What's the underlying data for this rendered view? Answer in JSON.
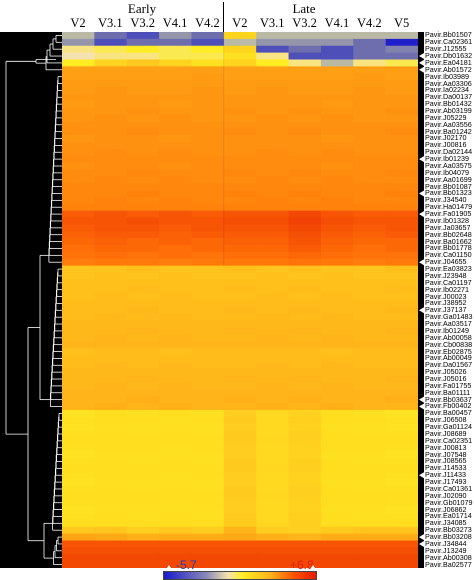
{
  "groups": {
    "early": "Early",
    "late": "Late"
  },
  "columns": [
    "V2",
    "V3.1",
    "V3.2",
    "V4.1",
    "V4.2",
    "V2",
    "V3.1",
    "V3.2",
    "V4.1",
    "V4.2",
    "V5"
  ],
  "legend": {
    "min": "-5.7",
    "max": "+6.8"
  },
  "rows": [
    {
      "id": "Pavir.Bb01507",
      "v": [
        -1,
        -3,
        -4,
        -2,
        -3,
        3,
        -1,
        -1,
        -1,
        -1,
        -1
      ],
      "m": false
    },
    {
      "id": "Pavir.Ca02361",
      "v": [
        -2,
        -4,
        -3,
        -3,
        -4,
        -1,
        -2,
        -2,
        -2,
        -3,
        -5.5
      ],
      "m": false
    },
    {
      "id": "Pavir.J12555",
      "v": [
        1,
        1.5,
        2,
        1.5,
        2,
        3,
        -4,
        -3,
        -4,
        -3,
        -2.5
      ],
      "m": false
    },
    {
      "id": "Pavir.Db01632",
      "v": [
        0.5,
        1,
        1,
        1.5,
        1.5,
        2.5,
        1,
        -4,
        -4,
        -3,
        -3
      ],
      "m": true
    },
    {
      "id": "Pavir.Ea04181",
      "v": [
        2,
        3,
        3.5,
        3,
        2.5,
        3,
        2,
        1,
        -1,
        1,
        1.5
      ],
      "m": true
    },
    {
      "id": "Pavir.Ab01572",
      "v": [
        4.5,
        4.5,
        4.5,
        4.5,
        4.5,
        4.5,
        4.5,
        4.5,
        4.5,
        4.5,
        4.5
      ],
      "m": true
    },
    {
      "id": "Pavir.Ib03989",
      "v": [
        4.5,
        4.5,
        4.5,
        4.5,
        4.6,
        4.5,
        4.5,
        4.5,
        4.5,
        4.6,
        4.5
      ],
      "m": false
    },
    {
      "id": "Pavir.Aa03306",
      "v": [
        4.6,
        4.6,
        4.6,
        4.6,
        4.6,
        4.6,
        4.6,
        4.6,
        4.6,
        4.6,
        4.6
      ],
      "m": false
    },
    {
      "id": "Pavir.Ia02234",
      "v": [
        4.6,
        4.7,
        4.6,
        4.6,
        4.7,
        4.6,
        4.7,
        4.6,
        4.6,
        4.7,
        4.6
      ],
      "m": false
    },
    {
      "id": "Pavir.Da00137",
      "v": [
        4.7,
        4.7,
        4.7,
        4.7,
        4.7,
        4.7,
        4.7,
        4.7,
        4.7,
        4.7,
        4.7
      ],
      "m": false
    },
    {
      "id": "Pavir.Bb01432",
      "v": [
        4.6,
        4.7,
        4.7,
        4.6,
        4.7,
        4.7,
        4.7,
        4.7,
        4.6,
        4.7,
        4.7
      ],
      "m": false
    },
    {
      "id": "Pavir.Ab03199",
      "v": [
        4.7,
        4.7,
        4.8,
        4.7,
        4.7,
        4.8,
        4.7,
        4.8,
        4.7,
        4.7,
        4.8
      ],
      "m": false
    },
    {
      "id": "Pavir.J05229",
      "v": [
        4.7,
        4.8,
        4.7,
        4.8,
        4.7,
        4.7,
        4.8,
        4.7,
        4.8,
        4.7,
        4.7
      ],
      "m": false
    },
    {
      "id": "Pavir.Aa03556",
      "v": [
        4.8,
        4.8,
        4.8,
        4.8,
        4.8,
        4.8,
        4.8,
        4.8,
        4.8,
        4.8,
        4.8
      ],
      "m": false
    },
    {
      "id": "Pavir.Ba01242",
      "v": [
        4.8,
        4.8,
        4.9,
        4.8,
        4.8,
        4.9,
        4.8,
        4.9,
        4.8,
        4.8,
        4.9
      ],
      "m": false
    },
    {
      "id": "Pavir.J02170",
      "v": [
        4.7,
        4.8,
        4.8,
        4.7,
        4.8,
        4.8,
        4.8,
        4.8,
        4.7,
        4.8,
        4.8
      ],
      "m": false
    },
    {
      "id": "Pavir.J00816",
      "v": [
        4.8,
        4.8,
        4.8,
        4.8,
        4.8,
        4.8,
        4.8,
        4.8,
        4.8,
        4.8,
        4.8
      ],
      "m": false
    },
    {
      "id": "Pavir.Da02144",
      "v": [
        4.8,
        4.9,
        4.8,
        4.9,
        4.8,
        4.8,
        4.9,
        4.8,
        4.9,
        4.8,
        4.8
      ],
      "m": false
    },
    {
      "id": "Pavir.Ib01239",
      "v": [
        4.9,
        4.9,
        4.9,
        4.9,
        4.9,
        4.9,
        4.9,
        4.9,
        4.9,
        4.9,
        4.9
      ],
      "m": true
    },
    {
      "id": "Pavir.Aa03575",
      "v": [
        4.8,
        4.9,
        4.9,
        4.8,
        4.9,
        4.9,
        4.9,
        4.9,
        4.8,
        4.9,
        4.9
      ],
      "m": false
    },
    {
      "id": "Pavir.Ib04079",
      "v": [
        4.9,
        4.9,
        5,
        4.9,
        4.9,
        5,
        4.9,
        5,
        4.9,
        4.9,
        5
      ],
      "m": false
    },
    {
      "id": "Pavir.Aa01699",
      "v": [
        4.9,
        5,
        4.9,
        5,
        4.9,
        4.9,
        5,
        4.9,
        5,
        4.9,
        4.9
      ],
      "m": false
    },
    {
      "id": "Pavir.Bb01087",
      "v": [
        5,
        5,
        5,
        5,
        5,
        5,
        5,
        5,
        5,
        5,
        5
      ],
      "m": false
    },
    {
      "id": "Pavir.Bb01323",
      "v": [
        5,
        5,
        5.1,
        5,
        5,
        5.1,
        5,
        5.1,
        5,
        5,
        5.1
      ],
      "m": true
    },
    {
      "id": "Pavir.J34540",
      "v": [
        5,
        5.1,
        5,
        5.1,
        5,
        5,
        5.1,
        5,
        5.1,
        5,
        5
      ],
      "m": false
    },
    {
      "id": "Pavir.Ha01479",
      "v": [
        5.1,
        5.1,
        5.1,
        5.1,
        5.1,
        5.1,
        5.1,
        5.1,
        5.1,
        5.1,
        5.1
      ],
      "m": false
    },
    {
      "id": "Pavir.Fa01905",
      "v": [
        5.8,
        5.9,
        5.8,
        5.9,
        5.8,
        5.9,
        5.9,
        6.1,
        5.9,
        5.8,
        5.8
      ],
      "m": true
    },
    {
      "id": "Pavir.Ib01328",
      "v": [
        5.9,
        5.9,
        6,
        5.9,
        5.9,
        6,
        6,
        6.2,
        6,
        5.9,
        5.9
      ],
      "m": false
    },
    {
      "id": "Pavir.Ja03657",
      "v": [
        5.8,
        5.9,
        5.9,
        5.8,
        5.9,
        5.9,
        5.9,
        6.1,
        5.9,
        5.8,
        5.9
      ],
      "m": false
    },
    {
      "id": "Pavir.Bb02648",
      "v": [
        5.7,
        5.8,
        5.8,
        5.7,
        5.8,
        5.8,
        5.8,
        6,
        5.8,
        5.7,
        5.8
      ],
      "m": false
    },
    {
      "id": "Pavir.Ba01662",
      "v": [
        5.6,
        5.7,
        5.6,
        5.7,
        5.6,
        5.7,
        5.7,
        5.9,
        5.7,
        5.6,
        5.6
      ],
      "m": false
    },
    {
      "id": "Pavir.Bb01778",
      "v": [
        5.5,
        5.6,
        5.6,
        5.5,
        5.6,
        5.6,
        5.6,
        5.8,
        5.6,
        5.5,
        5.6
      ],
      "m": false
    },
    {
      "id": "Pavir.Ca01150",
      "v": [
        5.4,
        5.5,
        5.4,
        5.5,
        5.4,
        5.5,
        5.5,
        5.6,
        5.5,
        5.4,
        5.4
      ],
      "m": false
    },
    {
      "id": "Pavir.J04655",
      "v": [
        5.2,
        5.3,
        5.3,
        5.2,
        5.3,
        5.3,
        5.3,
        5.4,
        5.3,
        5.2,
        5.3
      ],
      "m": true
    },
    {
      "id": "Pavir.Ea03823",
      "v": [
        3.6,
        3.6,
        3.7,
        3.6,
        3.6,
        3.7,
        3.6,
        3.7,
        3.6,
        3.6,
        3.7
      ],
      "m": false
    },
    {
      "id": "Pavir.J23948",
      "v": [
        3.6,
        3.7,
        3.6,
        3.7,
        3.6,
        3.6,
        3.7,
        3.6,
        3.7,
        3.6,
        3.6
      ],
      "m": false
    },
    {
      "id": "Pavir.Ca01197",
      "v": [
        3.7,
        3.7,
        3.7,
        3.7,
        3.7,
        3.7,
        3.7,
        3.7,
        3.7,
        3.7,
        3.7
      ],
      "m": false
    },
    {
      "id": "Pavir.Ib02271",
      "v": [
        3.7,
        3.7,
        3.8,
        3.7,
        3.7,
        3.8,
        3.7,
        3.8,
        3.7,
        3.7,
        3.8
      ],
      "m": false
    },
    {
      "id": "Pavir.J00023",
      "v": [
        3.7,
        3.8,
        3.7,
        3.8,
        3.7,
        3.7,
        3.8,
        3.7,
        3.8,
        3.7,
        3.7
      ],
      "m": false
    },
    {
      "id": "Pavir.J38952",
      "v": [
        3.8,
        3.8,
        3.8,
        3.8,
        3.8,
        3.8,
        3.8,
        3.8,
        3.8,
        3.8,
        3.8
      ],
      "m": false
    },
    {
      "id": "Pavir.J37137",
      "v": [
        3.8,
        3.8,
        3.9,
        3.8,
        3.8,
        3.9,
        3.8,
        3.9,
        3.8,
        3.8,
        3.9
      ],
      "m": true
    },
    {
      "id": "Pavir.Ga01483",
      "v": [
        3.8,
        3.9,
        3.8,
        3.9,
        3.8,
        3.8,
        3.9,
        3.8,
        3.9,
        3.8,
        3.8
      ],
      "m": false
    },
    {
      "id": "Pavir.Aa03517",
      "v": [
        3.9,
        3.9,
        3.9,
        3.9,
        3.9,
        3.9,
        3.9,
        3.9,
        3.9,
        3.9,
        3.9
      ],
      "m": false
    },
    {
      "id": "Pavir.Ib01249",
      "v": [
        3.9,
        3.9,
        4,
        3.9,
        3.9,
        4,
        3.9,
        4,
        3.9,
        3.9,
        4
      ],
      "m": false
    },
    {
      "id": "Pavir.Ab00058",
      "v": [
        3.9,
        4,
        3.9,
        4,
        3.9,
        3.9,
        4,
        3.9,
        4,
        3.9,
        3.9
      ],
      "m": false
    },
    {
      "id": "Pavir.Cb00838",
      "v": [
        4,
        4,
        4,
        4,
        4,
        4,
        4,
        4,
        4,
        4,
        4
      ],
      "m": false
    },
    {
      "id": "Pavir.Eb02875",
      "v": [
        3.7,
        3.8,
        3.8,
        3.7,
        3.8,
        3.8,
        3.8,
        3.8,
        3.7,
        3.8,
        3.8
      ],
      "m": false
    },
    {
      "id": "Pavir.Ab00049",
      "v": [
        3.8,
        3.8,
        3.8,
        3.8,
        3.8,
        3.8,
        3.8,
        3.8,
        3.8,
        3.8,
        3.8
      ],
      "m": false
    },
    {
      "id": "Pavir.Da01567",
      "v": [
        3.8,
        3.9,
        3.8,
        3.9,
        3.8,
        3.8,
        3.9,
        3.8,
        3.9,
        3.8,
        3.8
      ],
      "m": false
    },
    {
      "id": "Pavir.J05026",
      "v": [
        3.9,
        3.9,
        3.9,
        3.9,
        3.9,
        3.9,
        3.9,
        3.9,
        3.9,
        3.9,
        3.9
      ],
      "m": false
    },
    {
      "id": "Pavir.J05016",
      "v": [
        3.9,
        3.9,
        4,
        3.9,
        3.9,
        4,
        3.9,
        4,
        3.9,
        3.9,
        4
      ],
      "m": false
    },
    {
      "id": "Pavir.Fa01755",
      "v": [
        3.9,
        4,
        3.9,
        4,
        3.9,
        3.9,
        4,
        3.9,
        4,
        3.9,
        3.9
      ],
      "m": false
    },
    {
      "id": "Pavir.Ba01111",
      "v": [
        4,
        4,
        4,
        4,
        4,
        4,
        4,
        4,
        4,
        4,
        4
      ],
      "m": false
    },
    {
      "id": "Pavir.Bb03637",
      "v": [
        4,
        4,
        4.1,
        4,
        4,
        4.1,
        4,
        4.1,
        4,
        4,
        4.1
      ],
      "m": true
    },
    {
      "id": "Pavir.Fb00402",
      "v": [
        4,
        4.1,
        4,
        4.1,
        4,
        4,
        4.1,
        4,
        4.1,
        4,
        4
      ],
      "m": true
    },
    {
      "id": "Pavir.Ba00457",
      "v": [
        2.4,
        2.6,
        2.5,
        2.6,
        2.5,
        3.3,
        2.8,
        3.1,
        2.6,
        2.5,
        2.4
      ],
      "m": false
    },
    {
      "id": "Pavir.J06508",
      "v": [
        2.5,
        2.6,
        2.6,
        2.5,
        2.6,
        3.4,
        2.8,
        3.2,
        2.6,
        2.6,
        2.5
      ],
      "m": false
    },
    {
      "id": "Pavir.Ga01124",
      "v": [
        2.4,
        2.5,
        2.5,
        2.5,
        2.5,
        3.3,
        2.8,
        3.1,
        2.5,
        2.5,
        2.4
      ],
      "m": false
    },
    {
      "id": "Pavir.J08689",
      "v": [
        2.5,
        2.6,
        2.5,
        2.6,
        2.5,
        3.4,
        2.8,
        3.2,
        2.6,
        2.5,
        2.5
      ],
      "m": false
    },
    {
      "id": "Pavir.Ca02351",
      "v": [
        2.6,
        2.6,
        2.6,
        2.6,
        2.6,
        3.4,
        2.9,
        3.2,
        2.6,
        2.6,
        2.6
      ],
      "m": false
    },
    {
      "id": "Pavir.J00813",
      "v": [
        2.5,
        2.6,
        2.6,
        2.5,
        2.6,
        3.3,
        2.8,
        3.1,
        2.6,
        2.6,
        2.5
      ],
      "m": false
    },
    {
      "id": "Pavir.J07548",
      "v": [
        2.4,
        2.5,
        2.5,
        2.5,
        2.5,
        3.3,
        2.8,
        3.1,
        2.5,
        2.5,
        2.4
      ],
      "m": false
    },
    {
      "id": "Pavir.J08565",
      "v": [
        2.5,
        2.6,
        2.5,
        2.6,
        2.5,
        3.4,
        2.8,
        3.2,
        2.6,
        2.5,
        2.5
      ],
      "m": false
    },
    {
      "id": "Pavir.J14533",
      "v": [
        2.6,
        2.6,
        2.6,
        2.6,
        2.6,
        3.4,
        2.9,
        3.2,
        2.6,
        2.6,
        2.6
      ],
      "m": false
    },
    {
      "id": "Pavir.J11433",
      "v": [
        2.5,
        2.6,
        2.6,
        2.5,
        2.6,
        3.3,
        2.8,
        3.1,
        2.6,
        2.6,
        2.5
      ],
      "m": true
    },
    {
      "id": "Pavir.J17493",
      "v": [
        2.4,
        2.5,
        2.5,
        2.5,
        2.5,
        3.3,
        2.8,
        3.1,
        2.5,
        2.5,
        2.4
      ],
      "m": false
    },
    {
      "id": "Pavir.Ca01361",
      "v": [
        2.5,
        2.6,
        2.5,
        2.6,
        2.5,
        3.4,
        2.8,
        3.2,
        2.6,
        2.5,
        2.5
      ],
      "m": false
    },
    {
      "id": "Pavir.J02090",
      "v": [
        2.6,
        2.6,
        2.6,
        2.6,
        2.6,
        3.4,
        2.9,
        3.2,
        2.6,
        2.6,
        2.6
      ],
      "m": false
    },
    {
      "id": "Pavir.Gb01079",
      "v": [
        2.5,
        2.6,
        2.6,
        2.5,
        2.6,
        3.3,
        2.8,
        3.1,
        2.6,
        2.6,
        2.5
      ],
      "m": false
    },
    {
      "id": "Pavir.J06862",
      "v": [
        2.4,
        2.5,
        2.5,
        2.5,
        2.5,
        3.3,
        2.8,
        3.1,
        2.5,
        2.5,
        2.4
      ],
      "m": false
    },
    {
      "id": "Pavir.Ea01714",
      "v": [
        2.5,
        2.6,
        2.5,
        2.6,
        2.5,
        3.4,
        2.8,
        3.2,
        2.6,
        2.5,
        2.5
      ],
      "m": false
    },
    {
      "id": "Pavir.J34085",
      "v": [
        2.6,
        2.6,
        2.6,
        2.6,
        2.6,
        3.4,
        2.9,
        3.2,
        2.6,
        2.6,
        2.6
      ],
      "m": false
    },
    {
      "id": "Pavir.Bb03273",
      "v": [
        3.5,
        3.6,
        3.2,
        3.5,
        3.3,
        4,
        3.3,
        3.2,
        3.4,
        3.6,
        3.6
      ],
      "m": false
    },
    {
      "id": "Pavir.Bb03208",
      "v": [
        4.4,
        4.3,
        4.1,
        4.2,
        4.2,
        4.3,
        4.1,
        4,
        4.2,
        4.2,
        4.2
      ],
      "m": true
    },
    {
      "id": "Pavir.J34844",
      "v": [
        5.9,
        5.9,
        5.9,
        5.9,
        5.9,
        5.9,
        5.9,
        5.9,
        5.9,
        5.9,
        5.9
      ],
      "m": true
    },
    {
      "id": "Pavir.J13249",
      "v": [
        6,
        6,
        6,
        6,
        6,
        6,
        6,
        6,
        6,
        6,
        6
      ],
      "m": false
    },
    {
      "id": "Pavir.Ab00308",
      "v": [
        6.1,
        6.1,
        6.1,
        6.1,
        6.1,
        6.1,
        6.1,
        6.1,
        6.1,
        6.1,
        6.1
      ],
      "m": false
    },
    {
      "id": "Pavir.Ba02577",
      "v": [
        6.1,
        6.1,
        6.1,
        6.1,
        6.1,
        6.1,
        6.1,
        6.1,
        6.1,
        6.1,
        6.1
      ],
      "m": false
    }
  ]
}
